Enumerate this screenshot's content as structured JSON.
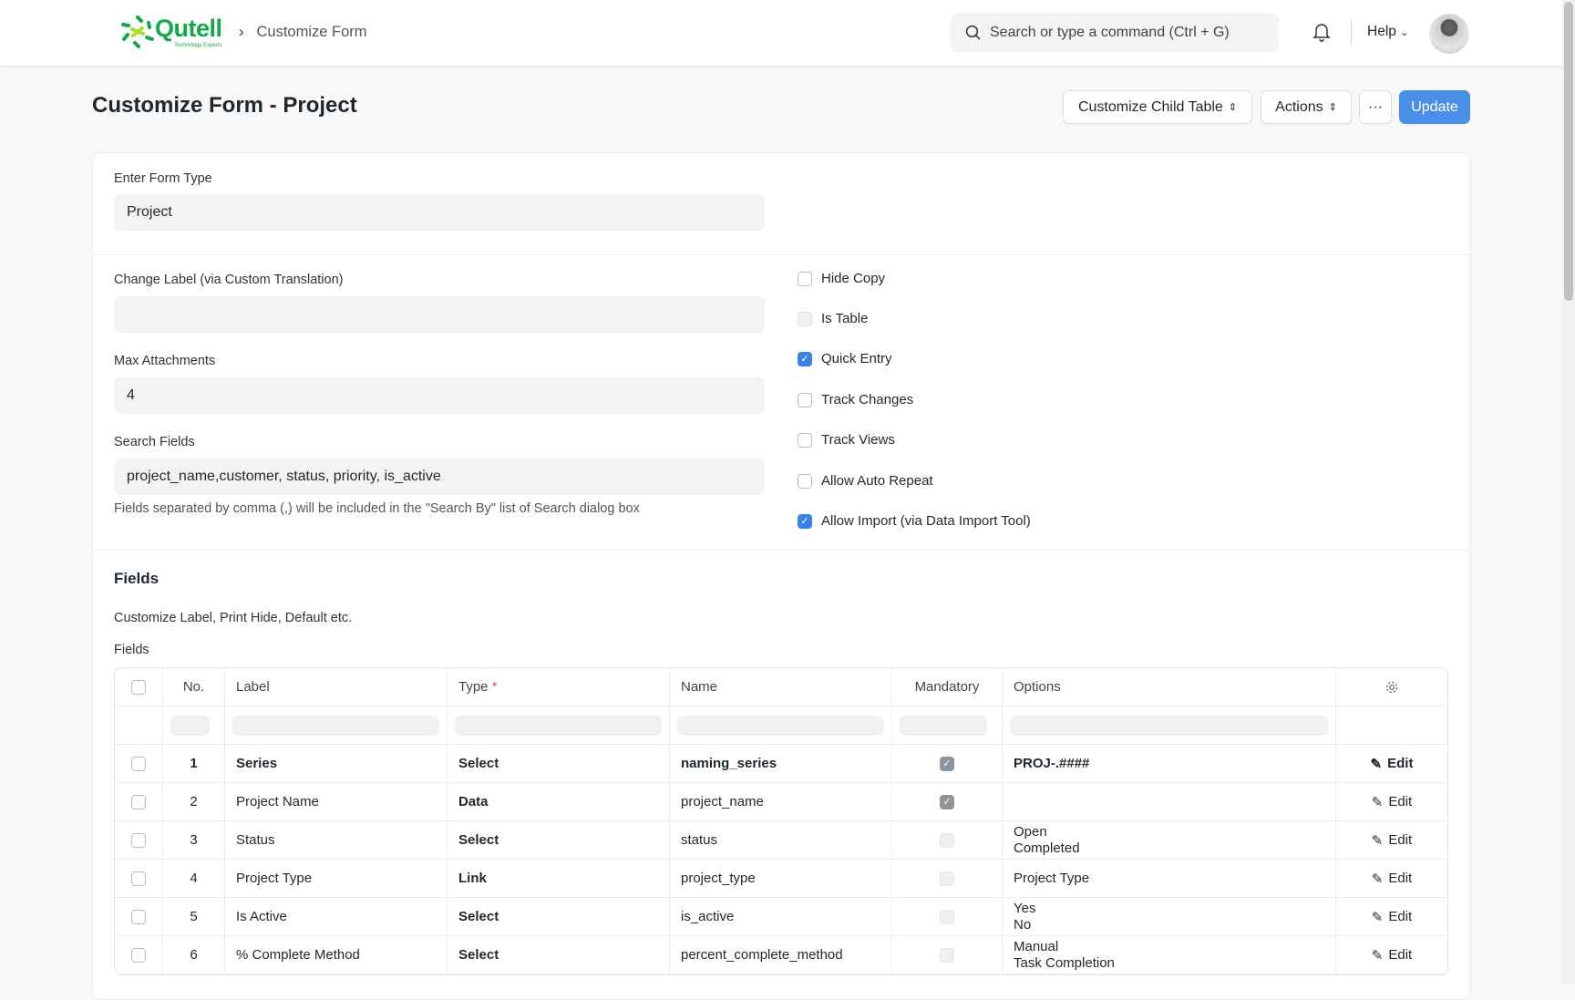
{
  "header": {
    "logo_text": "Qutell",
    "logo_tagline": "Technology Experts",
    "breadcrumb": "Customize Form",
    "search_placeholder": "Search or type a command (Ctrl + G)",
    "help_label": "Help"
  },
  "page": {
    "title": "Customize Form - Project",
    "buttons": {
      "child_table": "Customize Child Table",
      "actions": "Actions",
      "more": "···",
      "update": "Update"
    }
  },
  "form": {
    "form_type_label": "Enter Form Type",
    "form_type_value": "Project",
    "change_label_label": "Change Label (via Custom Translation)",
    "change_label_value": "",
    "max_attachments_label": "Max Attachments",
    "max_attachments_value": "4",
    "search_fields_label": "Search Fields",
    "search_fields_value": "project_name,customer, status, priority, is_active",
    "search_fields_help": "Fields separated by comma (,) will be included in the \"Search By\" list of Search dialog box",
    "checkboxes": [
      {
        "label": "Hide Copy",
        "checked": false
      },
      {
        "label": "Is Table",
        "checked": false,
        "disabled": true
      },
      {
        "label": "Quick Entry",
        "checked": true
      },
      {
        "label": "Track Changes",
        "checked": false
      },
      {
        "label": "Track Views",
        "checked": false
      },
      {
        "label": "Allow Auto Repeat",
        "checked": false
      },
      {
        "label": "Allow Import (via Data Import Tool)",
        "checked": true
      }
    ]
  },
  "fields_section": {
    "title": "Fields",
    "description": "Customize Label, Print Hide, Default etc.",
    "table_label": "Fields",
    "columns": [
      "No.",
      "Label",
      "Type",
      "Name",
      "Mandatory",
      "Options"
    ],
    "required_mark": "*",
    "edit_label": "Edit",
    "rows": [
      {
        "no": "1",
        "label": "Series",
        "type": "Select",
        "name": "naming_series",
        "mandatory": true,
        "options": "PROJ-.####",
        "options_2": "",
        "bold": true
      },
      {
        "no": "2",
        "label": "Project Name",
        "type": "Data",
        "name": "project_name",
        "mandatory": true,
        "options": "",
        "options_2": ""
      },
      {
        "no": "3",
        "label": "Status",
        "type": "Select",
        "name": "status",
        "mandatory": false,
        "options": "Open",
        "options_2": "Completed"
      },
      {
        "no": "4",
        "label": "Project Type",
        "type": "Link",
        "name": "project_type",
        "mandatory": false,
        "options": "Project Type",
        "options_2": ""
      },
      {
        "no": "5",
        "label": "Is Active",
        "type": "Select",
        "name": "is_active",
        "mandatory": false,
        "options": "Yes",
        "options_2": "No"
      },
      {
        "no": "6",
        "label": "% Complete Method",
        "type": "Select",
        "name": "percent_complete_method",
        "mandatory": false,
        "options": "Manual",
        "options_2": "Task Completion"
      }
    ]
  },
  "colors": {
    "accent": "#4a8fe7",
    "logo": "#12a84a"
  }
}
